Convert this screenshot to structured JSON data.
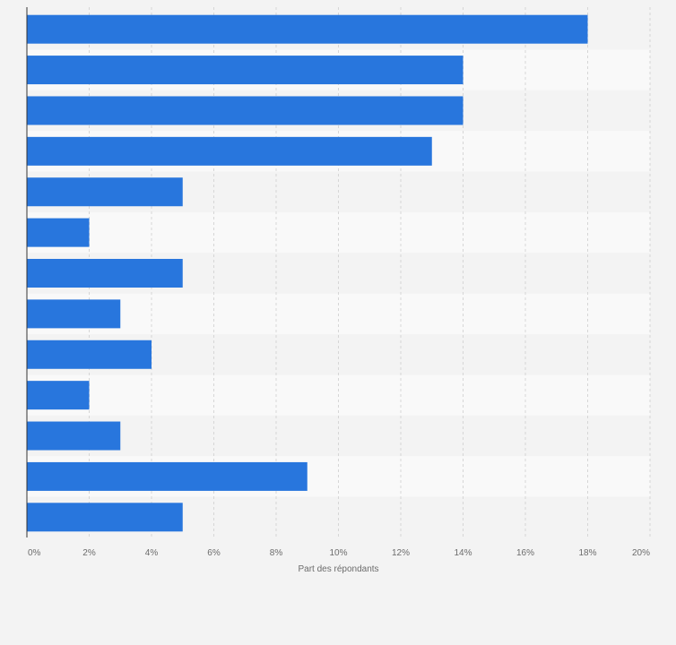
{
  "chart_data": {
    "type": "bar",
    "orientation": "horizontal",
    "categories": [
      "",
      "",
      "",
      "",
      "",
      "",
      "",
      "",
      "",
      "",
      "",
      "",
      ""
    ],
    "values": [
      18,
      14,
      14,
      13,
      5,
      2,
      5,
      3,
      4,
      2,
      3,
      9,
      5
    ],
    "unit": "%",
    "title": "",
    "xlabel": "Part des répondants",
    "ylabel": "",
    "xlim": [
      0,
      20
    ],
    "x_ticks": [
      "0%",
      "2%",
      "4%",
      "6%",
      "8%",
      "10%",
      "12%",
      "14%",
      "16%",
      "18%",
      "20%"
    ],
    "grid": true,
    "legend": "none",
    "colors": {
      "bar": "#2876dd",
      "band_light": "#f9f9f9",
      "band_dark": "#f3f3f3",
      "grid": "#d6d6d6",
      "axis": "#333333",
      "text": "#6b6b6b"
    }
  }
}
